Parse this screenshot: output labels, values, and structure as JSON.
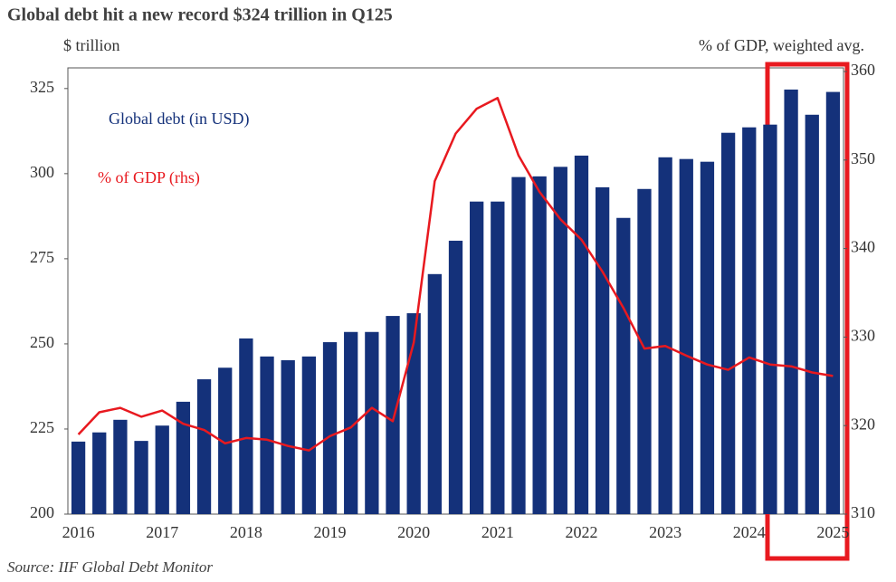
{
  "chart_data": {
    "type": "bar",
    "title": "Global debt hit a new record $324 trillion in Q125",
    "y_label": "$ trillion",
    "y2_label": "% of GDP, weighted avg.",
    "source": "Source: IIF Global Debt Monitor",
    "categories": [
      "2016",
      null,
      null,
      null,
      "2017",
      null,
      null,
      null,
      "2018",
      null,
      null,
      null,
      "2019",
      null,
      null,
      null,
      "2020",
      null,
      null,
      null,
      "2021",
      null,
      null,
      null,
      "2022",
      null,
      null,
      null,
      "2023",
      null,
      null,
      null,
      "2024",
      null,
      null,
      null,
      "2025"
    ],
    "series": [
      {
        "name": "Global debt (in USD)",
        "type": "bar",
        "color": "#14317a",
        "values": [
          221.3,
          224,
          227.7,
          221.5,
          226,
          233,
          239.6,
          243,
          251.6,
          246.3,
          245.2,
          246.3,
          250.5,
          253.5,
          253.5,
          258.2,
          259,
          270.5,
          280.3,
          291.8,
          291.8,
          299,
          299.2,
          302,
          305.3,
          296,
          287,
          295.5,
          304.8,
          304.3,
          303.5,
          312,
          313.6,
          314.4,
          324.7,
          317.3,
          324
        ]
      },
      {
        "name": "% of GDP (rhs)",
        "type": "line",
        "axis": "y2",
        "color": "#e8191f",
        "values": [
          319,
          321.5,
          322,
          321,
          321.7,
          320.2,
          319.5,
          318,
          318.6,
          318.4,
          317.7,
          317.2,
          318.8,
          319.8,
          322,
          320.5,
          329.4,
          347.6,
          353,
          355.8,
          357,
          350.5,
          346.4,
          343.3,
          341,
          337.4,
          333.3,
          328.7,
          329,
          327.9,
          326.9,
          326.3,
          327.7,
          326.9,
          326.7,
          326,
          325.6
        ]
      }
    ],
    "ylim": [
      200,
      330
    ],
    "yticks": [
      200,
      225,
      250,
      275,
      300,
      325
    ],
    "y2lim": [
      310,
      360
    ],
    "y2ticks": [
      310,
      320,
      330,
      340,
      350,
      360
    ]
  }
}
